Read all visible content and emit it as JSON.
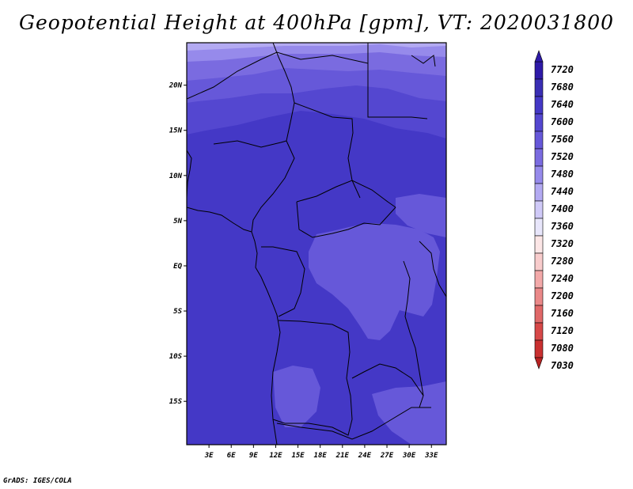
{
  "title": "Geopotential Height at 400hPa [gpm], VT: 2020031800",
  "footer": "GrADS: IGES/COLA",
  "map": {
    "lat_labels": [
      "20N",
      "15N",
      "10N",
      "5N",
      "EQ",
      "5S",
      "10S",
      "15S"
    ],
    "lat_values": [
      20,
      15,
      10,
      5,
      0,
      -5,
      -10,
      -15
    ],
    "lon_labels": [
      "3E",
      "6E",
      "9E",
      "12E",
      "15E",
      "18E",
      "21E",
      "24E",
      "27E",
      "30E",
      "33E"
    ],
    "lon_values": [
      3,
      6,
      9,
      12,
      15,
      18,
      21,
      24,
      27,
      30,
      33
    ],
    "lat_range": [
      -19.8,
      24.7
    ],
    "lon_range": [
      0,
      35
    ]
  },
  "colorbar": {
    "labels": [
      "7720",
      "7680",
      "7640",
      "7600",
      "7560",
      "7520",
      "7480",
      "7440",
      "7400",
      "7360",
      "7320",
      "7280",
      "7240",
      "7200",
      "7160",
      "7120",
      "7080",
      "7030"
    ],
    "colors": [
      "#2e1aa8",
      "#3a2eb4",
      "#4438c6",
      "#5447d0",
      "#6658d9",
      "#7a6be0",
      "#968aeb",
      "#b3aaf2",
      "#d0caf8",
      "#e8e6fb",
      "#fce6e6",
      "#f8cccc",
      "#f3a9a9",
      "#ea8888",
      "#e06868",
      "#d74848",
      "#c93030",
      "#b82222"
    ]
  }
}
